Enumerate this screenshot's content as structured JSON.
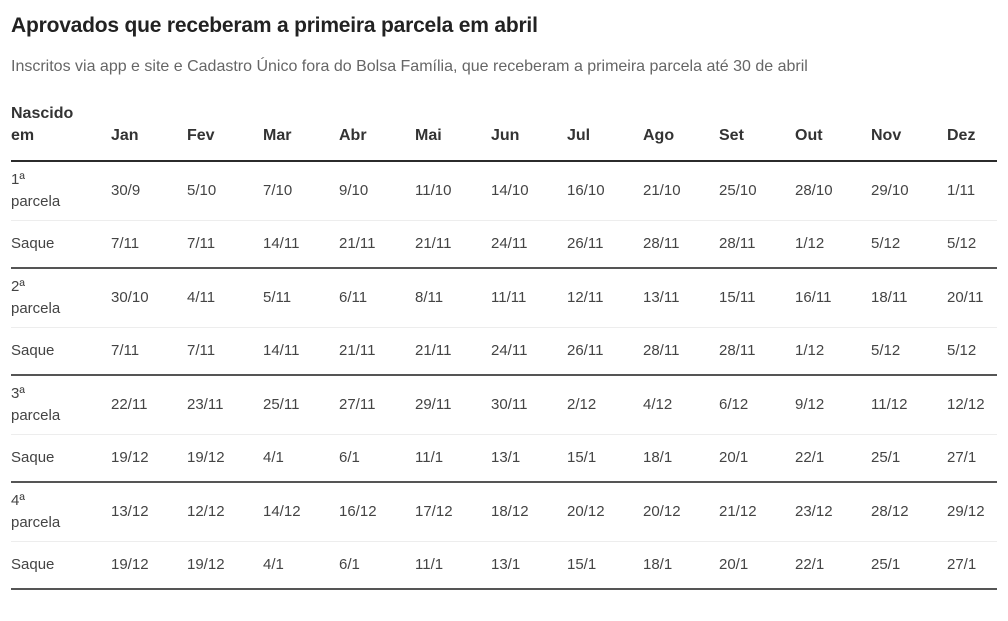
{
  "chart_data": {
    "type": "table",
    "title": "Aprovados que receberam a primeira parcela em abril",
    "subtitle": "Inscritos via app e site e Cadastro Único fora do Bolsa Família, que receberam a primeira parcela até 30 de abril",
    "corner_header": "Nascido em",
    "month_columns": [
      "Jan",
      "Fev",
      "Mar",
      "Abr",
      "Mai",
      "Jun",
      "Jul",
      "Ago",
      "Set",
      "Out",
      "Nov",
      "Dez"
    ],
    "rows": [
      {
        "label": "1ª parcela",
        "kind": "parcela",
        "values": [
          "30/9",
          "5/10",
          "7/10",
          "9/10",
          "11/10",
          "14/10",
          "16/10",
          "21/10",
          "25/10",
          "28/10",
          "29/10",
          "1/11"
        ]
      },
      {
        "label": "Saque",
        "kind": "saque",
        "values": [
          "7/11",
          "7/11",
          "14/11",
          "21/11",
          "21/11",
          "24/11",
          "26/11",
          "28/11",
          "28/11",
          "1/12",
          "5/12",
          "5/12"
        ]
      },
      {
        "label": "2ª parcela",
        "kind": "parcela",
        "values": [
          "30/10",
          "4/11",
          "5/11",
          "6/11",
          "8/11",
          "11/11",
          "12/11",
          "13/11",
          "15/11",
          "16/11",
          "18/11",
          "20/11"
        ]
      },
      {
        "label": "Saque",
        "kind": "saque",
        "values": [
          "7/11",
          "7/11",
          "14/11",
          "21/11",
          "21/11",
          "24/11",
          "26/11",
          "28/11",
          "28/11",
          "1/12",
          "5/12",
          "5/12"
        ]
      },
      {
        "label": "3ª parcela",
        "kind": "parcela",
        "values": [
          "22/11",
          "23/11",
          "25/11",
          "27/11",
          "29/11",
          "30/11",
          "2/12",
          "4/12",
          "6/12",
          "9/12",
          "11/12",
          "12/12"
        ]
      },
      {
        "label": "Saque",
        "kind": "saque",
        "values": [
          "19/12",
          "19/12",
          "4/1",
          "6/1",
          "11/1",
          "13/1",
          "15/1",
          "18/1",
          "20/1",
          "22/1",
          "25/1",
          "27/1"
        ]
      },
      {
        "label": "4ª parcela",
        "kind": "parcela",
        "values": [
          "13/12",
          "12/12",
          "14/12",
          "16/12",
          "17/12",
          "18/12",
          "20/12",
          "20/12",
          "21/12",
          "23/12",
          "28/12",
          "29/12"
        ]
      },
      {
        "label": "Saque",
        "kind": "saque",
        "values": [
          "19/12",
          "19/12",
          "4/1",
          "6/1",
          "11/1",
          "13/1",
          "15/1",
          "18/1",
          "20/1",
          "22/1",
          "25/1",
          "27/1"
        ]
      }
    ],
    "layout_hints": {
      "columns_align": "left",
      "grid": "horizontal-rules-only"
    },
    "colors": {
      "title_text": "#222222",
      "subtitle_text": "#666666",
      "body_text": "#444444",
      "header_rule": "#2b2b2b",
      "group_rule": "#555555",
      "light_rule": "#ededed"
    }
  }
}
